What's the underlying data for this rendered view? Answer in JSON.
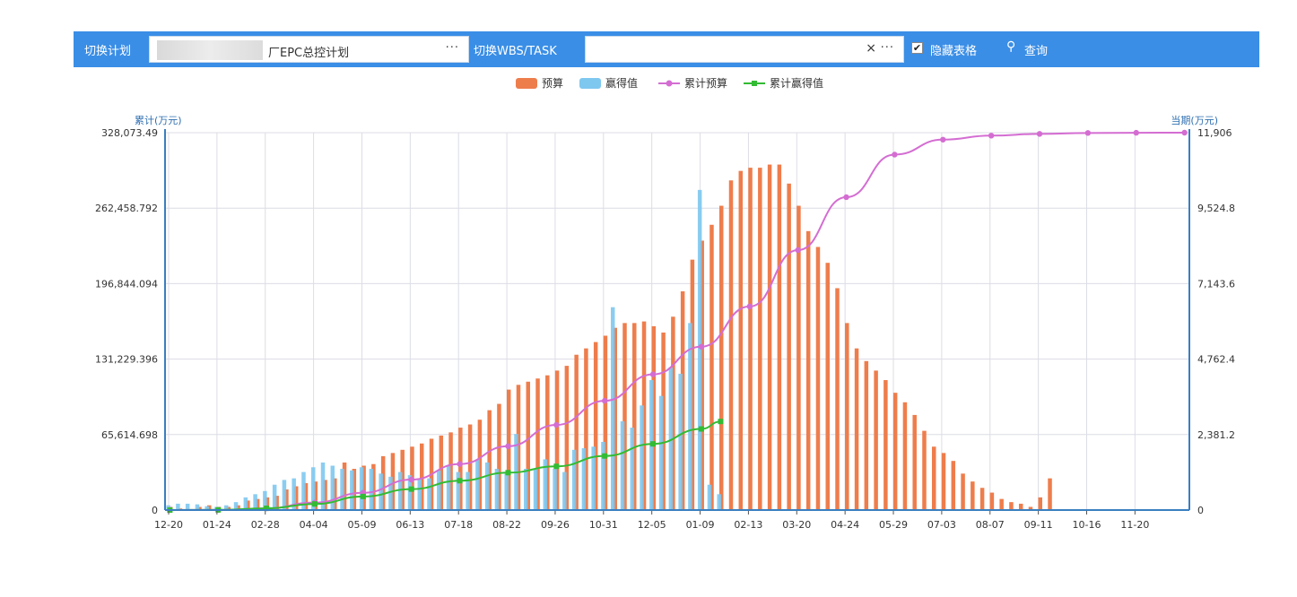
{
  "toolbar": {
    "plan_label": "切换计划",
    "plan_value": "厂EPC总控计划",
    "wbs_label": "切换WBS/TASK",
    "wbs_value": "",
    "clear_glyph": "×",
    "more_glyph": "···",
    "hide_table_label": "隐藏表格",
    "hide_table_checked": true,
    "query_label": "查询"
  },
  "chart_data": {
    "type": "bar",
    "title": "",
    "y_left_label": "累计(万元)",
    "y_right_label": "当期(万元)",
    "y_left_ticks": [
      "0",
      "65,614.698",
      "131,229.396",
      "196,844.094",
      "262,458.792",
      "328,073.49"
    ],
    "y_right_ticks": [
      "0",
      "2,381.2",
      "4,762.4",
      "7,143.6",
      "9,524.8",
      "11,906"
    ],
    "ylim_left": [
      0,
      328073.49
    ],
    "ylim_right": [
      0,
      11906
    ],
    "x_tick_labels": [
      "12-20",
      "01-24",
      "02-28",
      "04-04",
      "05-09",
      "06-13",
      "07-18",
      "08-22",
      "09-26",
      "10-31",
      "12-05",
      "01-09",
      "02-13",
      "03-20",
      "04-24",
      "05-29",
      "07-03",
      "08-07",
      "09-11",
      "10-16",
      "11-20"
    ],
    "periods": 106,
    "legend": [
      {
        "name": "预算",
        "color": "#ee7d4c",
        "kind": "bar"
      },
      {
        "name": "赢得值",
        "color": "#7ec8f0",
        "kind": "bar"
      },
      {
        "name": "累计预算",
        "color": "#d46dd2",
        "kind": "line"
      },
      {
        "name": "累计赢得值",
        "color": "#33bb33",
        "kind": "line"
      }
    ],
    "series": [
      {
        "name": "预算",
        "axis": "right",
        "values": [
          100,
          50,
          30,
          100,
          150,
          100,
          100,
          150,
          300,
          350,
          400,
          450,
          650,
          750,
          850,
          900,
          950,
          1000,
          1500,
          1300,
          1400,
          1450,
          1700,
          1800,
          1900,
          2000,
          2100,
          2250,
          2350,
          2450,
          2600,
          2700,
          2850,
          3150,
          3350,
          3800,
          3950,
          4050,
          4150,
          4250,
          4400,
          4550,
          4900,
          5100,
          5300,
          5500,
          5750,
          5900,
          5900,
          5950,
          5800,
          5600,
          6100,
          6900,
          7900,
          8500,
          9000,
          9600,
          10400,
          10700,
          10800,
          10800,
          10900,
          10900,
          10300,
          9600,
          8800,
          8300,
          7800,
          7000,
          5900,
          5100,
          4700,
          4400,
          4100,
          3700,
          3400,
          3000,
          2500,
          2000,
          1800,
          1550,
          1150,
          900,
          700,
          550,
          350,
          250,
          200,
          100,
          400,
          1000,
          0,
          0,
          0,
          0,
          0,
          0,
          0,
          0,
          0,
          0,
          0,
          0,
          0,
          0
        ]
      },
      {
        "name": "赢得值",
        "axis": "right",
        "values": [
          150,
          200,
          200,
          180,
          120,
          100,
          150,
          250,
          400,
          500,
          600,
          800,
          950,
          1000,
          1200,
          1350,
          1500,
          1400,
          1300,
          1250,
          1350,
          1300,
          1150,
          1050,
          1200,
          1100,
          1000,
          1000,
          1250,
          1400,
          1200,
          1200,
          1600,
          1500,
          1300,
          1150,
          2400,
          1300,
          1300,
          1600,
          1300,
          1200,
          1900,
          1950,
          2000,
          2150,
          6400,
          2800,
          2600,
          3300,
          4100,
          3600,
          4500,
          4300,
          5900,
          10100,
          800,
          500,
          0,
          0,
          0,
          0,
          0,
          0,
          0,
          0,
          0,
          0,
          0,
          0,
          0,
          0,
          0,
          0,
          0,
          0,
          0,
          0,
          0,
          0,
          0,
          0,
          0,
          0,
          0,
          0,
          0,
          0,
          0,
          0,
          0,
          0,
          0,
          0,
          0,
          0,
          0,
          0,
          0,
          0,
          0,
          0,
          0,
          0,
          0,
          0
        ]
      },
      {
        "name": "累计预算",
        "axis": "left",
        "x": [
          0,
          5,
          10,
          15,
          20,
          25,
          30,
          35,
          40,
          45,
          50,
          55,
          60,
          65,
          70,
          75,
          80,
          85,
          90,
          95,
          100,
          105
        ],
        "values": [
          0,
          100,
          1500,
          6500,
          15000,
          26500,
          40000,
          55500,
          74000,
          95000,
          118000,
          142000,
          177000,
          226000,
          272000,
          309000,
          322000,
          325500,
          327000,
          327800,
          328000,
          328073
        ]
      },
      {
        "name": "累计赢得值",
        "axis": "left",
        "x": [
          0,
          5,
          10,
          15,
          20,
          25,
          30,
          35,
          40,
          45,
          50,
          55,
          57
        ],
        "values": [
          0,
          150,
          1500,
          5300,
          11800,
          18200,
          25500,
          32500,
          38000,
          47000,
          57500,
          70500,
          77000
        ]
      }
    ]
  }
}
